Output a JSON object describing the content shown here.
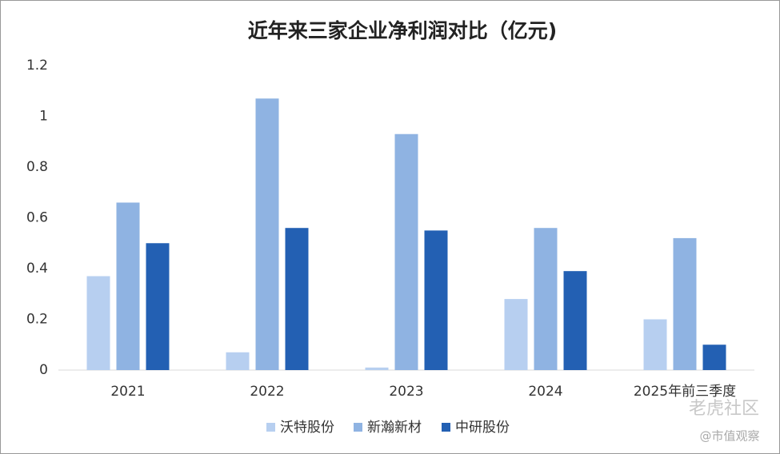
{
  "chart_data": {
    "type": "bar",
    "title": "近年来三家企业净利润对比（亿元)",
    "categories": [
      "2021",
      "2022",
      "2023",
      "2024",
      "2025年前三季度"
    ],
    "series": [
      {
        "name": "沃特股份",
        "color": "#b7cff0",
        "values": [
          0.37,
          0.07,
          0.01,
          0.28,
          0.2
        ]
      },
      {
        "name": "新瀚新材",
        "color": "#8fb3e2",
        "values": [
          0.66,
          1.07,
          0.93,
          0.56,
          0.52
        ]
      },
      {
        "name": "中研股份",
        "color": "#2360b3",
        "values": [
          0.5,
          0.56,
          0.55,
          0.39,
          0.1
        ]
      }
    ],
    "ylim": [
      0,
      1.2
    ],
    "yticks": [
      0,
      0.2,
      0.4,
      0.6,
      0.8,
      1,
      1.2
    ],
    "grid": false,
    "legend": "bottom"
  },
  "watermarks": [
    "老虎社区",
    "@市值观察"
  ]
}
